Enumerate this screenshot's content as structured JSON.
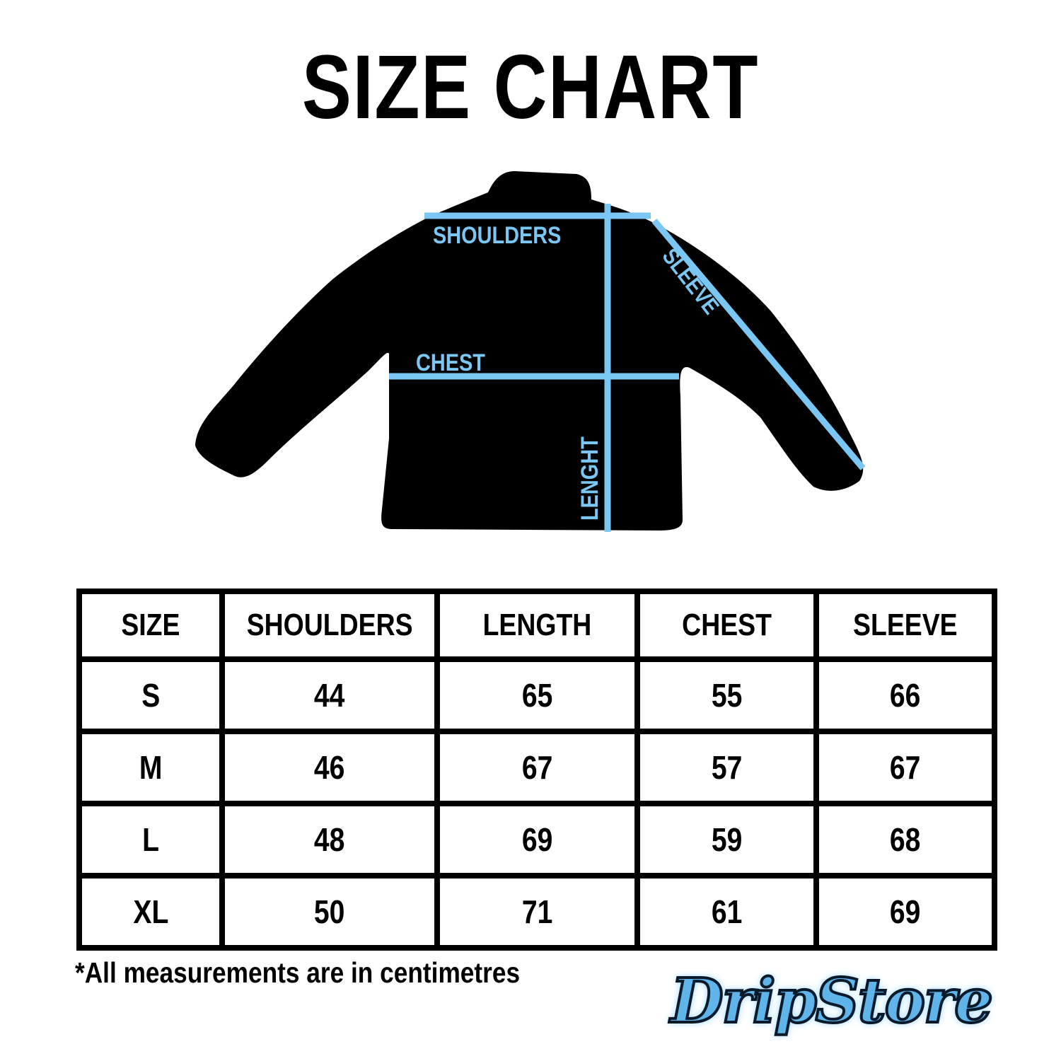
{
  "title": "SIZE CHART",
  "diagram": {
    "labels": {
      "shoulders": "SHOULDERS",
      "sleeve": "SLEEVE",
      "chest": "CHEST",
      "length": "LENGHT"
    },
    "line_color": "#79c7f2",
    "garment_color": "#000000"
  },
  "table": {
    "headers": [
      "SIZE",
      "SHOULDERS",
      "LENGTH",
      "CHEST",
      "SLEEVE"
    ],
    "rows": [
      [
        "S",
        "44",
        "65",
        "55",
        "66"
      ],
      [
        "M",
        "46",
        "67",
        "57",
        "67"
      ],
      [
        "L",
        "48",
        "69",
        "59",
        "68"
      ],
      [
        "XL",
        "50",
        "71",
        "61",
        "69"
      ]
    ]
  },
  "note": "*All measurements are in centimetres",
  "logo": {
    "text": "DripStore"
  }
}
